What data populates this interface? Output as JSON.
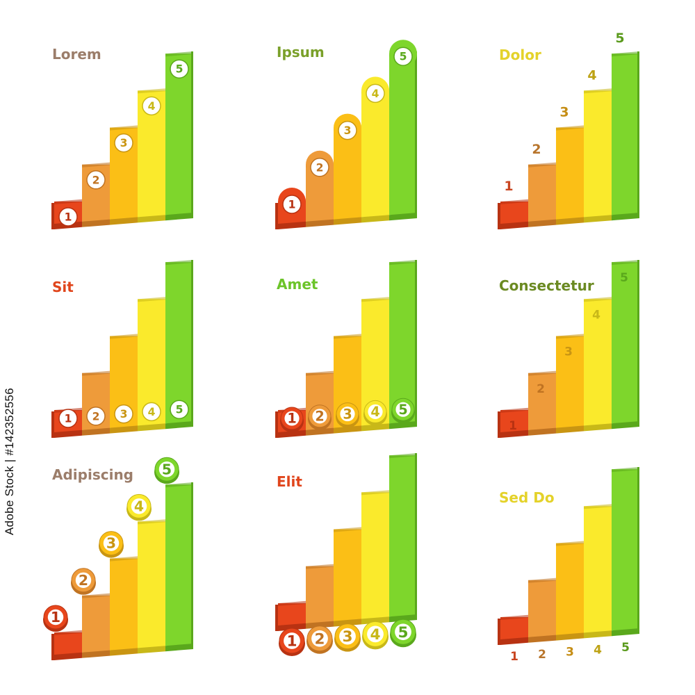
{
  "colors": {
    "levels": [
      "#e8461c",
      "#ee9b3a",
      "#fbbf16",
      "#faea2c",
      "#7ed62c"
    ],
    "sides": [
      "#b83212",
      "#c07322",
      "#c99512",
      "#c8b818",
      "#5aa81c"
    ],
    "label_text": [
      "#c94520",
      "#b8752c",
      "#c58d14",
      "#bda214",
      "#5a9a1c"
    ],
    "badge_fill": "#ffffff"
  },
  "charts": [
    {
      "title": "Lorem",
      "title_color": "#9b7d6a",
      "labels": [
        "1",
        "2",
        "3",
        "4",
        "5"
      ]
    },
    {
      "title": "Ipsum",
      "title_color": "#7aa02a",
      "labels": [
        "1",
        "2",
        "3",
        "4",
        "5"
      ]
    },
    {
      "title": "Dolor",
      "title_color": "#e4d22a",
      "labels": [
        "1",
        "2",
        "3",
        "4",
        "5"
      ]
    },
    {
      "title": "Sit",
      "title_color": "#e0451c",
      "labels": [
        "1",
        "2",
        "3",
        "4",
        "5"
      ]
    },
    {
      "title": "Amet",
      "title_color": "#6cc42a",
      "labels": [
        "1",
        "2",
        "3",
        "4",
        "5"
      ]
    },
    {
      "title": "Consectetur",
      "title_color": "#6b8a22",
      "labels": [
        "1",
        "2",
        "3",
        "4",
        "5"
      ]
    },
    {
      "title": "Adipiscing",
      "title_color": "#9b7d6a",
      "labels": [
        "1",
        "2",
        "3",
        "4",
        "5"
      ]
    },
    {
      "title": "Elit",
      "title_color": "#e0451c",
      "labels": [
        "1",
        "2",
        "3",
        "4",
        "5"
      ]
    },
    {
      "title": "Sed Do",
      "title_color": "#e4d22a",
      "labels": [
        "1",
        "2",
        "3",
        "4",
        "5"
      ]
    }
  ],
  "chart_data": [
    {
      "type": "bar",
      "title": "Lorem",
      "categories": [
        "1",
        "2",
        "3",
        "4",
        "5"
      ],
      "values": [
        1,
        2,
        3,
        4,
        5
      ],
      "label_style": "badge-on-bar"
    },
    {
      "type": "bar",
      "title": "Ipsum",
      "categories": [
        "1",
        "2",
        "3",
        "4",
        "5"
      ],
      "values": [
        1,
        2,
        3,
        4,
        5
      ],
      "label_style": "rounded-top-badge"
    },
    {
      "type": "bar",
      "title": "Dolor",
      "categories": [
        "1",
        "2",
        "3",
        "4",
        "5"
      ],
      "values": [
        1,
        2,
        3,
        4,
        5
      ],
      "label_style": "text-above-bar"
    },
    {
      "type": "bar",
      "title": "Sit",
      "categories": [
        "1",
        "2",
        "3",
        "4",
        "5"
      ],
      "values": [
        1,
        2,
        3,
        4,
        5
      ],
      "label_style": "badge-at-base"
    },
    {
      "type": "bar",
      "title": "Amet",
      "categories": [
        "1",
        "2",
        "3",
        "4",
        "5"
      ],
      "values": [
        1,
        2,
        3,
        4,
        5
      ],
      "label_style": "3d-coin-at-base"
    },
    {
      "type": "bar",
      "title": "Consectetur",
      "categories": [
        "1",
        "2",
        "3",
        "4",
        "5"
      ],
      "values": [
        1,
        2,
        3,
        4,
        5
      ],
      "label_style": "text-inside-top"
    },
    {
      "type": "bar",
      "title": "Adipiscing",
      "categories": [
        "1",
        "2",
        "3",
        "4",
        "5"
      ],
      "values": [
        1,
        2,
        3,
        4,
        5
      ],
      "label_style": "coin-above-bar"
    },
    {
      "type": "bar",
      "title": "Elit",
      "categories": [
        "1",
        "2",
        "3",
        "4",
        "5"
      ],
      "values": [
        1,
        2,
        3,
        4,
        5
      ],
      "label_style": "coins-below-chart"
    },
    {
      "type": "bar",
      "title": "Sed Do",
      "categories": [
        "1",
        "2",
        "3",
        "4",
        "5"
      ],
      "values": [
        1,
        2,
        3,
        4,
        5
      ],
      "label_style": "text-below-chart"
    }
  ],
  "watermark": "Adobe Stock | #142352556"
}
